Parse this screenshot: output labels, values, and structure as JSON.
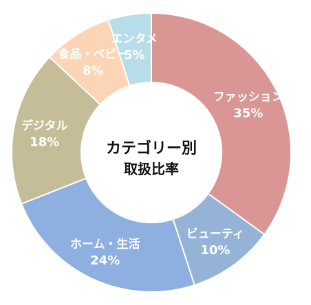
{
  "chart_data": {
    "type": "pie",
    "style": "donut",
    "center_title": {
      "line1": "カテゴリー別",
      "line2": "取扱比率"
    },
    "slices": [
      {
        "label": "ファッション",
        "value": 35,
        "value_label": "35%",
        "color": "#d99694"
      },
      {
        "label": "ビューティ",
        "value": 10,
        "value_label": "10%",
        "color": "#95b3d7"
      },
      {
        "label": "ホーム・生活",
        "value": 24,
        "value_label": "24%",
        "color": "#8db0e0"
      },
      {
        "label": "デジタル",
        "value": 18,
        "value_label": "18%",
        "color": "#c4bd97"
      },
      {
        "label": "食品・ベビー",
        "value": 8,
        "value_label": "8%",
        "color": "#fbd5b5"
      },
      {
        "label": "エンタメ",
        "value": 5,
        "value_label": "5%",
        "color": "#b7dde8"
      }
    ],
    "legend": "none"
  }
}
